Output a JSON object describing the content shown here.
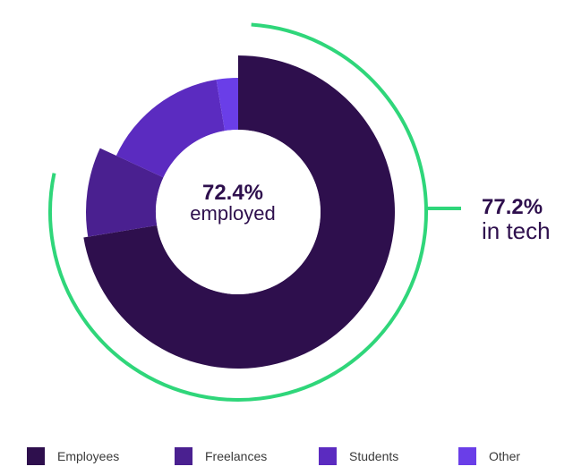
{
  "chart_data": {
    "type": "pie",
    "style": "donut",
    "categories": [
      "Employees",
      "Freelances",
      "Students",
      "Other"
    ],
    "values": [
      72.4,
      9.5,
      15.5,
      2.6
    ],
    "unit": "%",
    "center_label": {
      "value": "72.4%",
      "text": "employed"
    },
    "callout": {
      "value": "77.2%",
      "text": "in tech"
    },
    "callout_arc_percent": 77.2,
    "legend_position": "bottom"
  },
  "colors": {
    "Employees": "#2e0f4d",
    "Freelances": "#4a2090",
    "Students": "#5b2bc0",
    "Other": "#6a3ee8",
    "callout_arc": "#2fd67a",
    "center_value": "#2e0f4d",
    "center_text": "#2e0f4d"
  }
}
